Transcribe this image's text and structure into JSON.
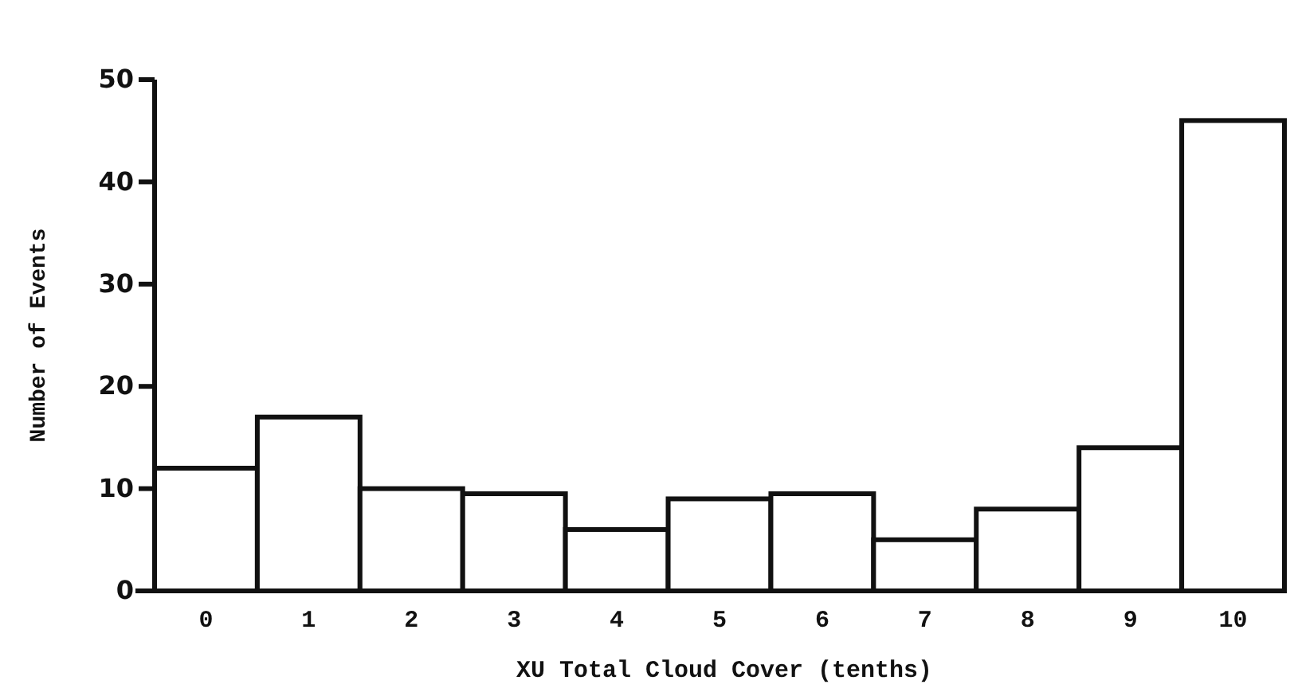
{
  "chart_data": {
    "type": "bar",
    "xlabel": "XU Total Cloud Cover (tenths)",
    "ylabel": "Number of Events",
    "categories": [
      "0",
      "1",
      "2",
      "3",
      "4",
      "5",
      "6",
      "7",
      "8",
      "9",
      "10"
    ],
    "values": [
      12,
      17,
      10,
      9.5,
      6,
      9,
      9.5,
      5,
      8,
      14,
      46
    ],
    "color": "#ffffff",
    "ylim": [
      0,
      50
    ],
    "yticks": [
      0,
      10,
      20,
      30,
      40,
      50
    ],
    "grid": false
  }
}
